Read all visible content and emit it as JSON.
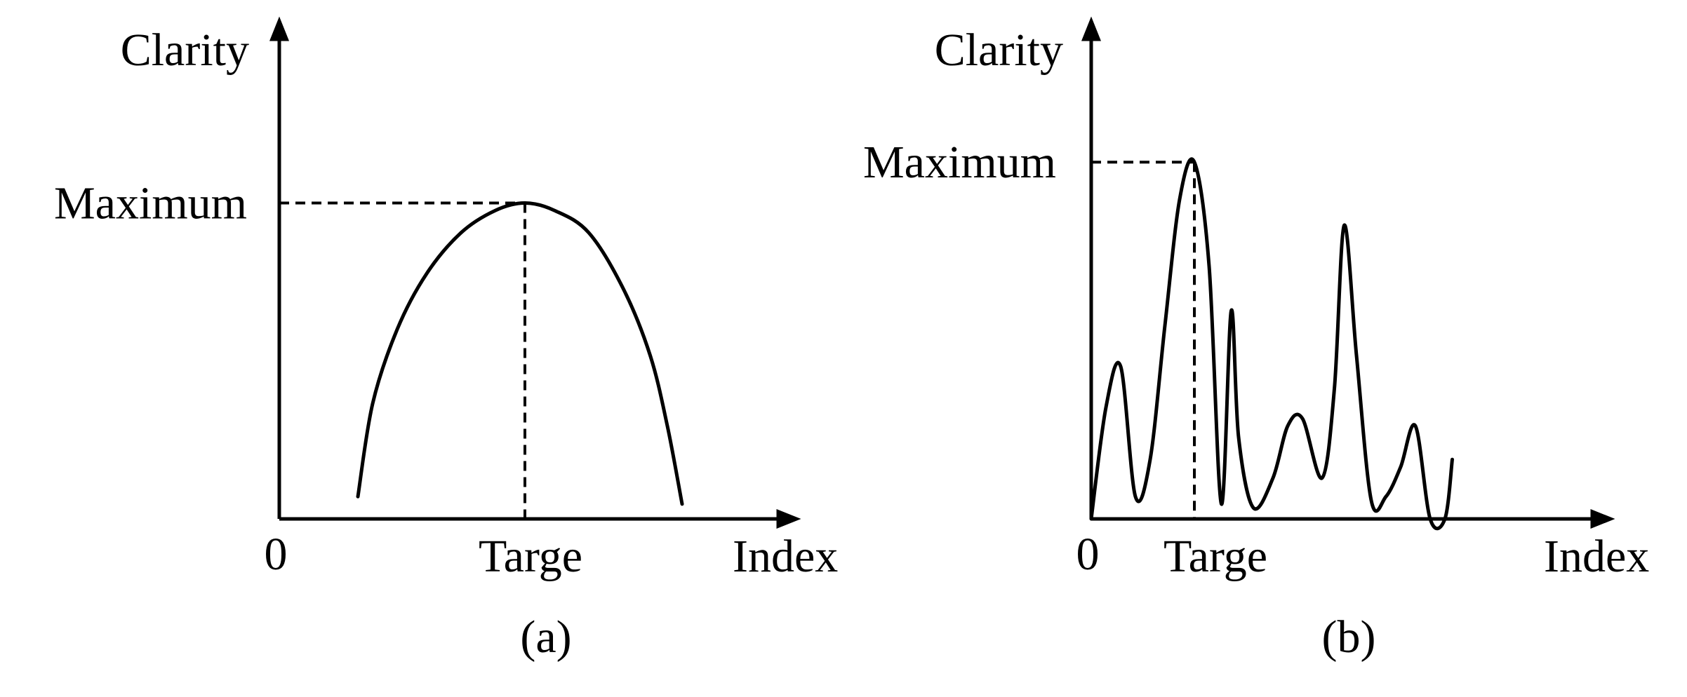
{
  "chart_data": [
    {
      "type": "line",
      "panel_label": "(a)",
      "ylabel": "Clarity",
      "xlabel": "Index",
      "origin_label": "0",
      "x_marker": {
        "label": "Targe",
        "value": 0.5
      },
      "y_marker": {
        "label": "Maximum",
        "value": 0.85
      },
      "xlim": [
        0,
        1.0
      ],
      "ylim": [
        0,
        1.0
      ],
      "grid": false,
      "series": [
        {
          "x": [
            0.16,
            0.19,
            0.24,
            0.3,
            0.37,
            0.44,
            0.5,
            0.56,
            0.63,
            0.7,
            0.755,
            0.79,
            0.82
          ],
          "y": [
            0.06,
            0.31,
            0.51,
            0.66,
            0.77,
            0.83,
            0.85,
            0.83,
            0.77,
            0.62,
            0.44,
            0.25,
            0.04
          ]
        }
      ]
    },
    {
      "type": "line",
      "panel_label": "(b)",
      "ylabel": "Clarity",
      "xlabel": "Index",
      "origin_label": "0",
      "x_marker": {
        "label": "Targe",
        "value": 0.21
      },
      "y_marker": {
        "label": "Maximum",
        "value": 0.96
      },
      "xlim": [
        0,
        1.0
      ],
      "ylim": [
        0,
        1.0
      ],
      "grid": false,
      "series": [
        {
          "x": [
            0.0,
            0.03,
            0.06,
            0.09,
            0.12,
            0.15,
            0.18,
            0.21,
            0.24,
            0.265,
            0.285,
            0.3,
            0.33,
            0.37,
            0.4,
            0.43,
            0.47,
            0.495,
            0.515,
            0.54,
            0.57,
            0.6,
            0.63,
            0.66,
            0.69,
            0.72,
            0.75,
            0.78
          ],
          "y": [
            0.0,
            0.3,
            0.41,
            0.06,
            0.16,
            0.52,
            0.86,
            0.96,
            0.68,
            0.04,
            0.56,
            0.22,
            0.03,
            0.11,
            0.25,
            0.27,
            0.11,
            0.35,
            0.79,
            0.44,
            0.05,
            0.06,
            0.14,
            0.25,
            0.0,
            0.0,
            0.0,
            0.0
          ]
        }
      ]
    }
  ]
}
